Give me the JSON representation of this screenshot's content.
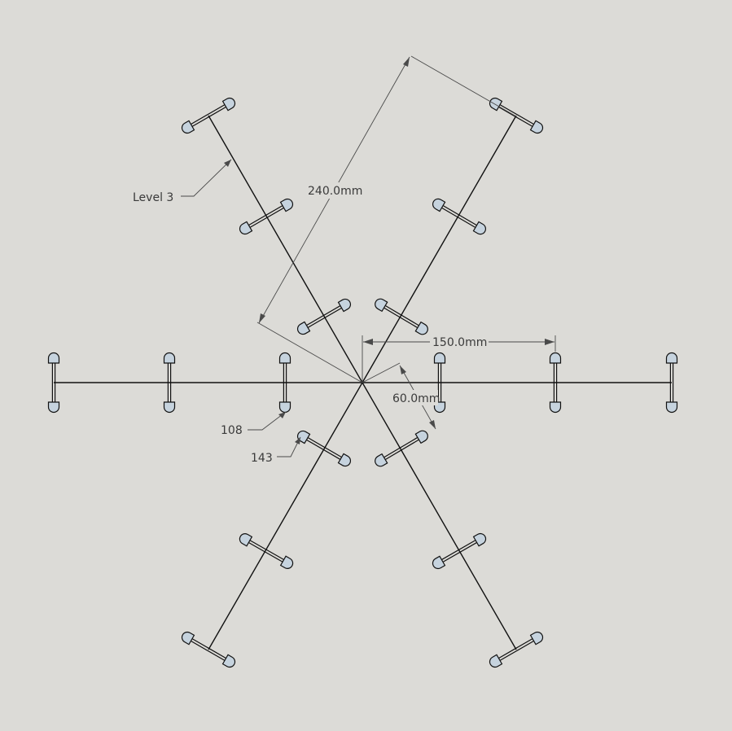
{
  "diagram": {
    "background": "#dcdbd7",
    "line_color": "#111111",
    "dimension_color": "#4a4a4a",
    "tip_fill": "#c6d3de",
    "dimensions": {
      "radial": "240.0mm",
      "horizontal": "150.0mm",
      "angular": "60.0mm"
    },
    "labels": {
      "level": "Level 3",
      "tag_a": "108",
      "tag_b": "143"
    }
  }
}
